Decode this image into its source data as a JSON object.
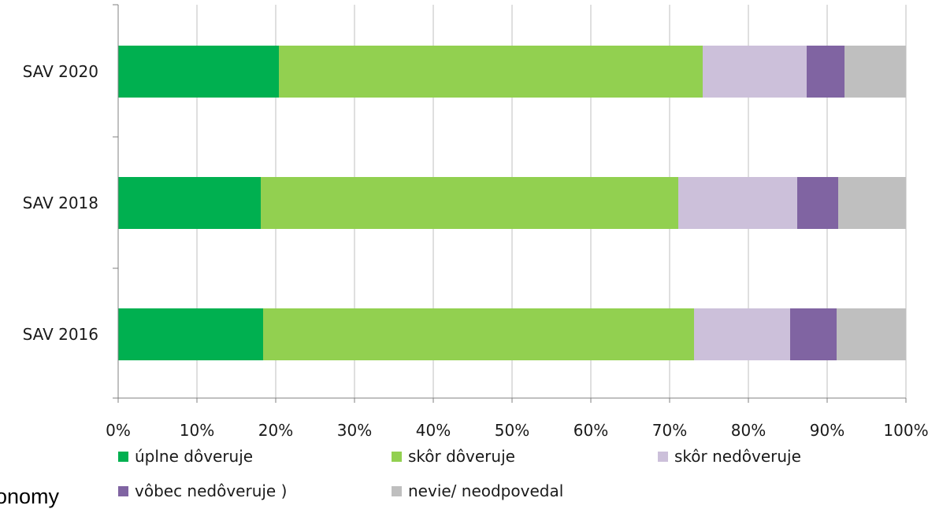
{
  "fragment_text": "onomy",
  "chart_data": {
    "type": "bar",
    "orientation": "horizontal",
    "stacked": true,
    "categories": [
      "SAV 2020",
      "SAV 2018",
      "SAV 2016"
    ],
    "series": [
      {
        "name": "úplne dôveruje",
        "color": "#00b050",
        "values": [
          20.4,
          18.1,
          18.4
        ]
      },
      {
        "name": "skôr dôveruje",
        "color": "#92d050",
        "values": [
          53.8,
          53.0,
          54.7
        ]
      },
      {
        "name": "skôr nedôveruje",
        "color": "#ccc0da",
        "values": [
          13.2,
          15.1,
          12.2
        ]
      },
      {
        "name": "vôbec nedôveruje )",
        "color": "#8064a2",
        "values": [
          4.8,
          5.2,
          5.9
        ]
      },
      {
        "name": "nevie/ neodpovedal",
        "color": "#bfbfbf",
        "values": [
          7.8,
          8.6,
          8.8
        ]
      }
    ],
    "xlim": [
      0,
      100
    ],
    "x_ticks": [
      "0%",
      "10%",
      "20%",
      "30%",
      "40%",
      "50%",
      "60%",
      "70%",
      "80%",
      "90%",
      "100%"
    ],
    "grid": "vertical",
    "legend_position": "bottom"
  }
}
